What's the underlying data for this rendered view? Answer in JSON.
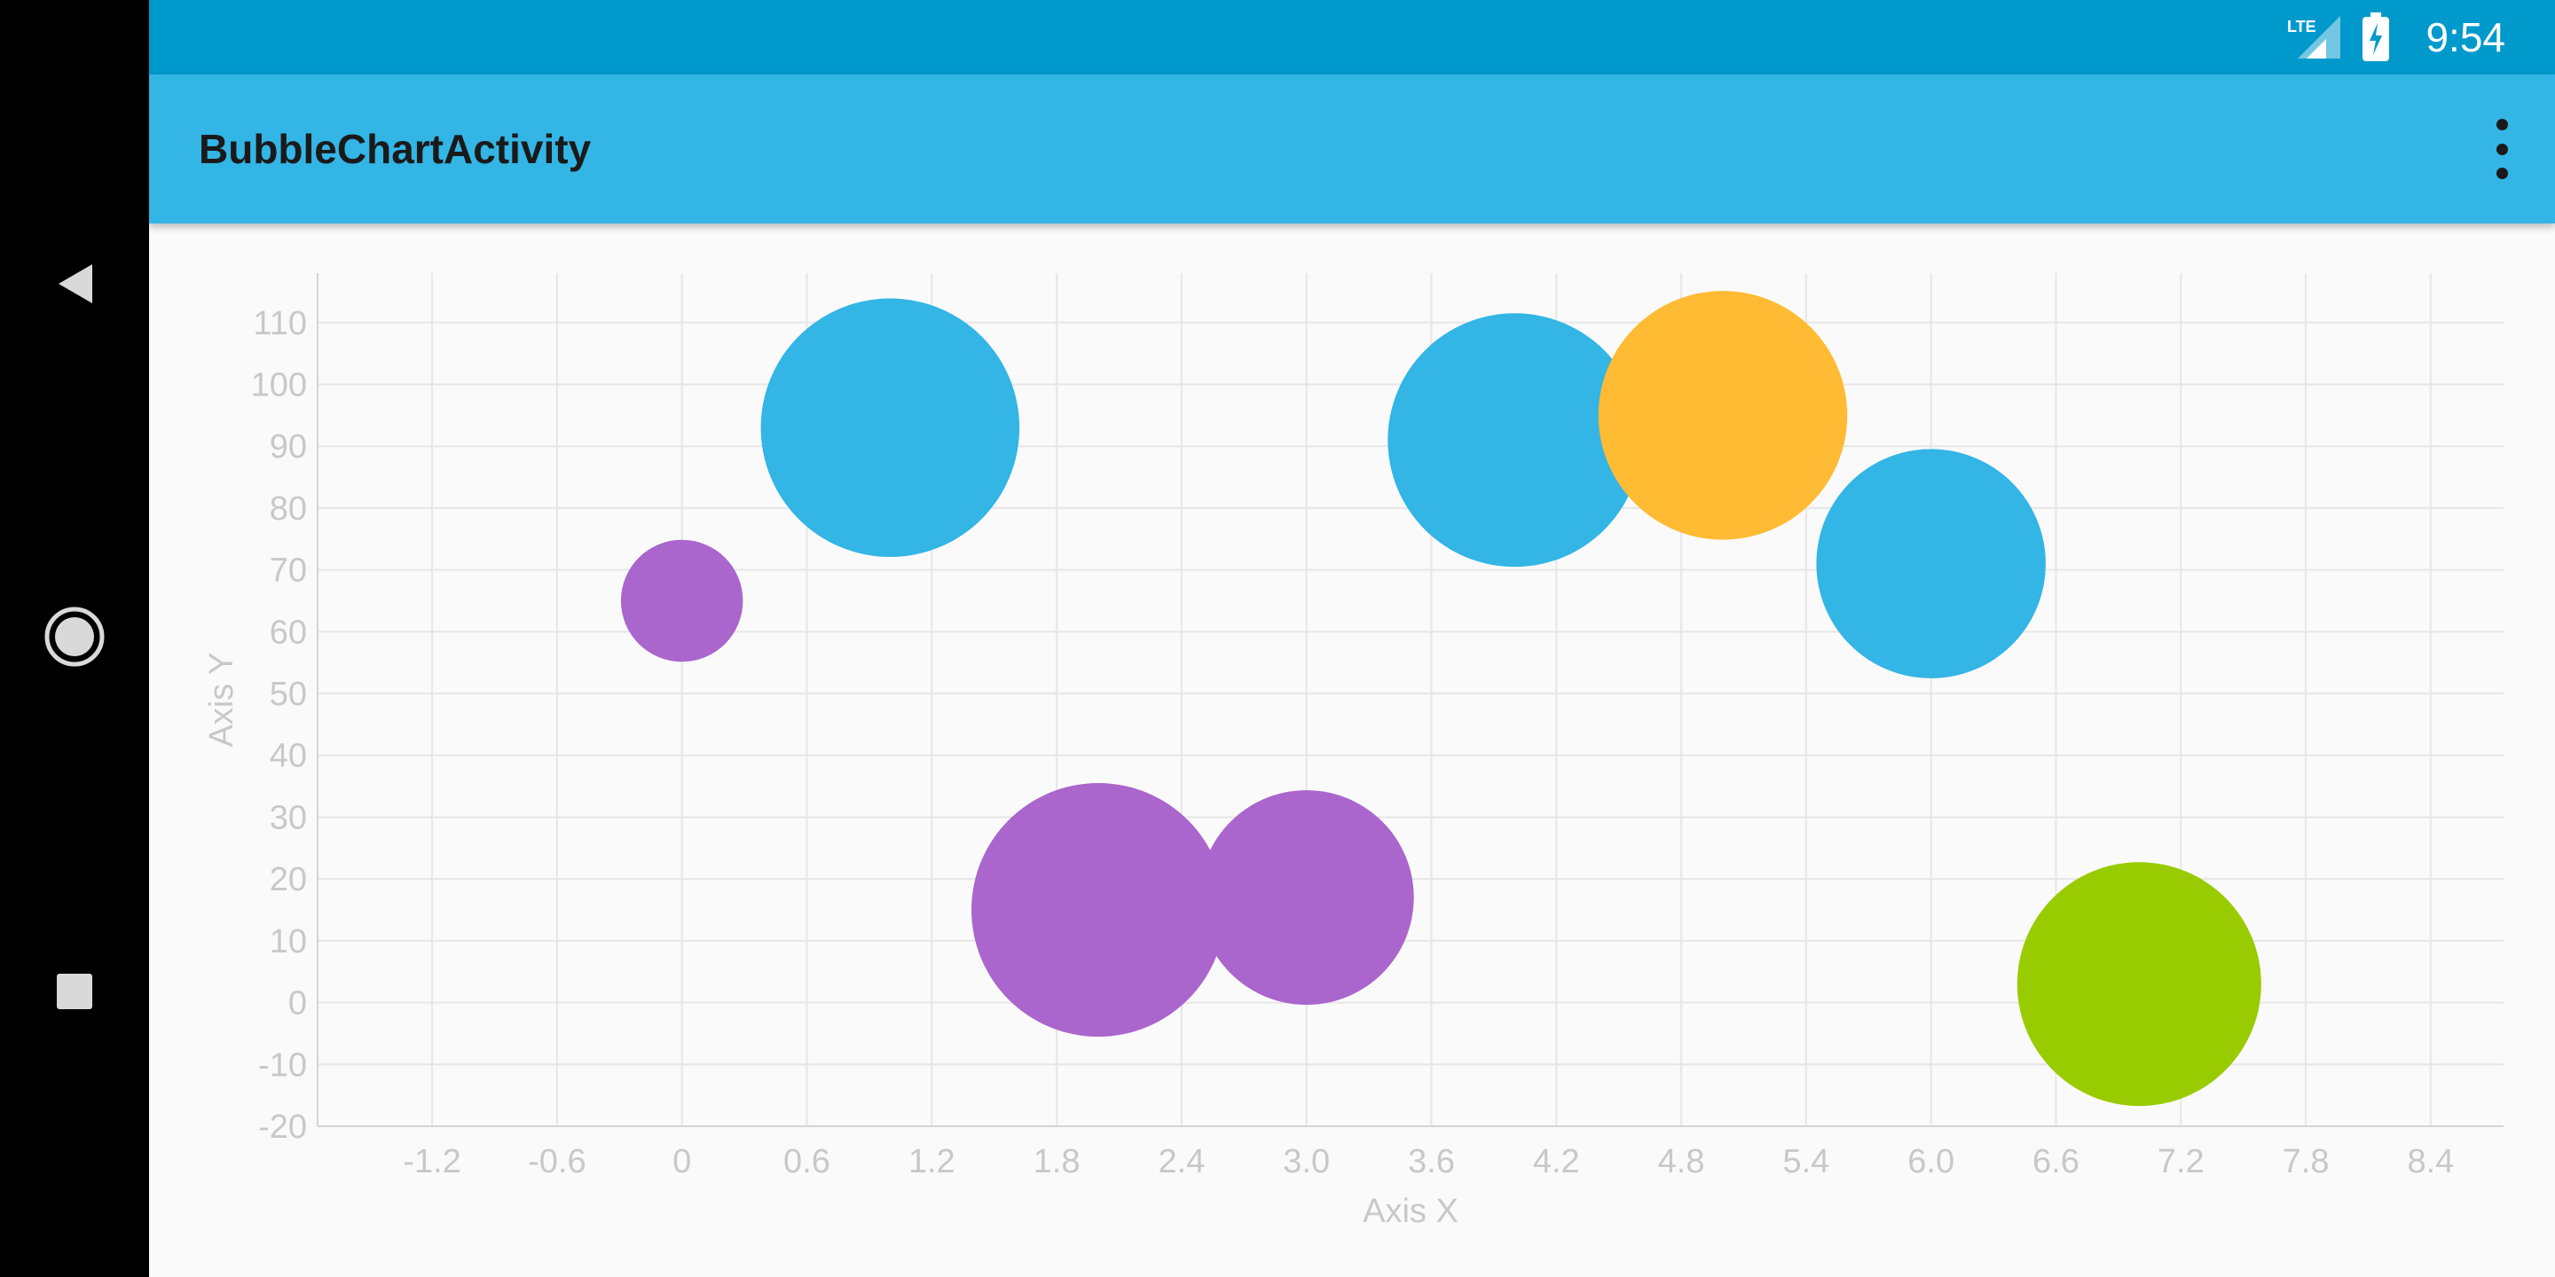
{
  "status_bar": {
    "time": "9:54",
    "network": "LTE",
    "icons": [
      "lte-signal-icon",
      "battery-charging-icon"
    ]
  },
  "app_bar": {
    "title": "BubbleChartActivity",
    "menu_icon": "more-vert-icon"
  },
  "nav_bar": {
    "buttons": [
      "back-icon",
      "home-icon",
      "recents-icon"
    ]
  },
  "colors": {
    "status_bar": "#0099cc",
    "app_bar": "#33b5e5",
    "blue": "#33b5e5",
    "purple": "#aa66cc",
    "orange": "#ffbb33",
    "green": "#99cc00"
  },
  "chart_data": {
    "type": "scatter",
    "subtype": "bubble",
    "xlabel": "Axis X",
    "ylabel": "Axis Y",
    "xlim": [
      -1.75,
      8.75
    ],
    "ylim": [
      -20,
      118
    ],
    "x_ticks": [
      "-1.2",
      "-0.6",
      "0",
      "0.6",
      "1.2",
      "1.8",
      "2.4",
      "3.0",
      "3.6",
      "4.2",
      "4.8",
      "5.4",
      "6.0",
      "6.6",
      "7.2",
      "7.8",
      "8.4"
    ],
    "y_ticks": [
      "-20",
      "-10",
      "0",
      "10",
      "20",
      "30",
      "40",
      "50",
      "60",
      "70",
      "80",
      "90",
      "100",
      "110"
    ],
    "grid": true,
    "bubbles": [
      {
        "x": 0,
        "y": 65,
        "size": 25,
        "color": "#aa66cc"
      },
      {
        "x": 1,
        "y": 93,
        "size": 53,
        "color": "#33b5e5"
      },
      {
        "x": 2,
        "y": 15,
        "size": 52,
        "color": "#aa66cc"
      },
      {
        "x": 3,
        "y": 17,
        "size": 44,
        "color": "#aa66cc"
      },
      {
        "x": 4,
        "y": 91,
        "size": 52,
        "color": "#33b5e5"
      },
      {
        "x": 5,
        "y": 95,
        "size": 51,
        "color": "#ffbb33"
      },
      {
        "x": 6,
        "y": 71,
        "size": 47,
        "color": "#33b5e5"
      },
      {
        "x": 7,
        "y": 3,
        "size": 50,
        "color": "#99cc00"
      }
    ]
  }
}
